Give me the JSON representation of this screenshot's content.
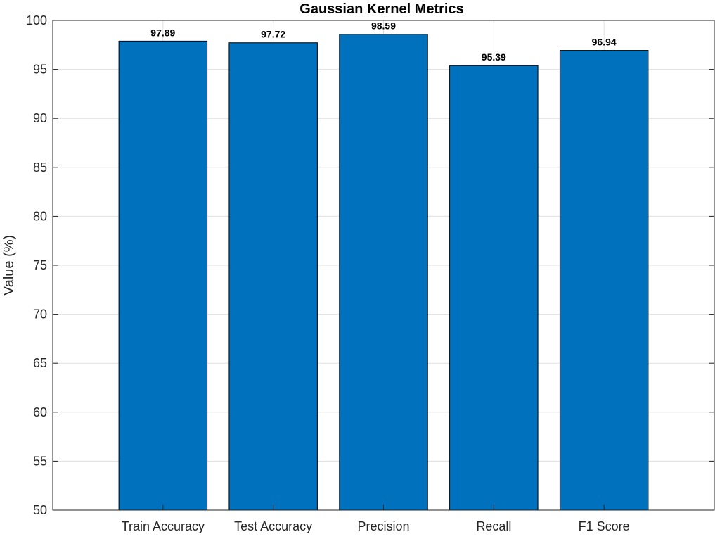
{
  "chart_data": {
    "type": "bar",
    "title": "Gaussian Kernel Metrics",
    "xlabel": "",
    "ylabel": "Value (%)",
    "categories": [
      "Train Accuracy",
      "Test Accuracy",
      "Precision",
      "Recall",
      "F1 Score"
    ],
    "values": [
      97.89,
      97.72,
      98.59,
      95.39,
      96.94
    ],
    "data_labels": [
      "97.89",
      "97.72",
      "98.59",
      "95.39",
      "96.94"
    ],
    "ylim": [
      50,
      100
    ],
    "yticks": [
      50,
      55,
      60,
      65,
      70,
      75,
      80,
      85,
      90,
      95,
      100
    ],
    "grid": true,
    "legend": "none",
    "bar_color": "#0072BD",
    "bar_edge_color": "#000000"
  }
}
